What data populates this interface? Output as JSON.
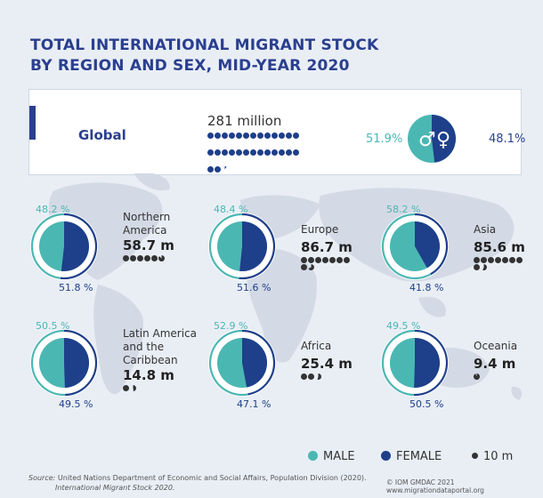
{
  "header": {
    "title_line1": "TOTAL INTERNATIONAL MIGRANT STOCK",
    "title_line2": "BY REGION AND SEX, MID-YEAR 2020"
  },
  "global": {
    "label": "Global",
    "total": "281 million",
    "male_pct": "51.9%",
    "female_pct": "48.1%",
    "male_value": 51.9,
    "female_value": 48.1,
    "dot_count": 28.1
  },
  "chart_data": {
    "type": "pie",
    "unit_per_dot": 10,
    "regions": [
      {
        "name": "Northern America",
        "name_lines": [
          "Northern",
          "America"
        ],
        "total": "58.7 m",
        "total_value": 58.7,
        "male": 48.2,
        "female": 51.8,
        "male_label": "48.2 %",
        "female_label": "51.8 %"
      },
      {
        "name": "Europe",
        "name_lines": [
          "Europe"
        ],
        "total": "86.7 m",
        "total_value": 86.7,
        "male": 48.4,
        "female": 51.6,
        "male_label": "48.4 %",
        "female_label": "51.6 %"
      },
      {
        "name": "Asia",
        "name_lines": [
          "Asia"
        ],
        "total": "85.6 m",
        "total_value": 85.6,
        "male": 58.2,
        "female": 41.8,
        "male_label": "58.2 %",
        "female_label": "41.8 %"
      },
      {
        "name": "Latin America and the Caribbean",
        "name_lines": [
          "Latin America",
          "and the",
          "Caribbean"
        ],
        "total": "14.8 m",
        "total_value": 14.8,
        "male": 50.5,
        "female": 49.5,
        "male_label": "50.5 %",
        "female_label": "49.5 %"
      },
      {
        "name": "Africa",
        "name_lines": [
          "Africa"
        ],
        "total": "25.4 m",
        "total_value": 25.4,
        "male": 52.9,
        "female": 47.1,
        "male_label": "52.9 %",
        "female_label": "47.1 %"
      },
      {
        "name": "Oceania",
        "name_lines": [
          "Oceania"
        ],
        "total": "9.4 m",
        "total_value": 9.4,
        "male": 49.5,
        "female": 50.5,
        "male_label": "49.5 %",
        "female_label": "50.5 %"
      }
    ],
    "colors": {
      "male": "#4bb7b3",
      "female": "#1e3f8a",
      "dot": "#333333"
    }
  },
  "legend": {
    "male": "MALE",
    "female": "FEMALE",
    "dot": "10 m"
  },
  "footer": {
    "source_label": "Source:",
    "source_line1": "United Nations Department of Economic and Social Affairs, Population Division (2020).",
    "source_line2": "International Migrant Stock 2020.",
    "credit": "© IOM GMDAC 2021 www.migrationdataportal.org"
  }
}
